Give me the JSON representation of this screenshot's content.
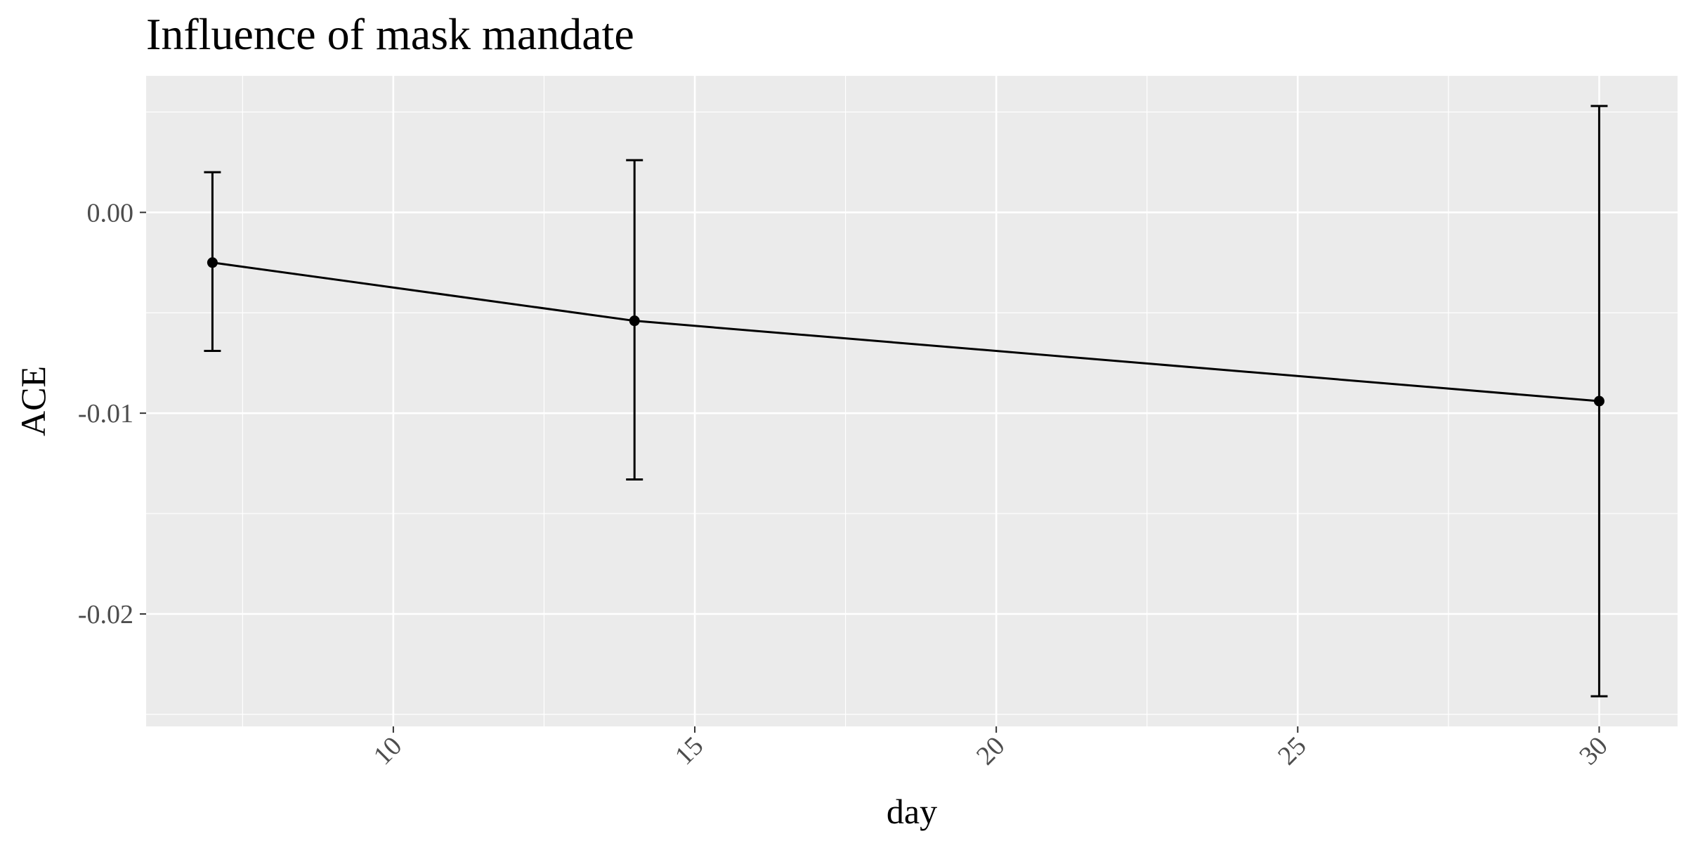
{
  "chart_data": {
    "type": "line",
    "title": "Influence of mask mandate",
    "xlabel": "day",
    "ylabel": "ACE",
    "xlim": [
      5.9,
      31.3
    ],
    "ylim": [
      -0.0256,
      0.0068
    ],
    "x_ticks": [
      10,
      15,
      20,
      25,
      30
    ],
    "x_tick_labels": [
      "10",
      "15",
      "20",
      "25",
      "30"
    ],
    "y_ticks": [
      0.0,
      -0.01,
      -0.02
    ],
    "y_tick_labels": [
      "0.00",
      "-0.01",
      "-0.02"
    ],
    "grid": true,
    "legend": "none",
    "x_tick_rotation": "45",
    "series": [
      {
        "x": [
          7,
          14,
          30
        ],
        "y": [
          -0.0025,
          -0.0054,
          -0.0094
        ],
        "ymin": [
          -0.0069,
          -0.0133,
          -0.0241
        ],
        "ymax": [
          0.002,
          0.0026,
          0.0053
        ]
      }
    ],
    "colors": {
      "panel": "#ebebeb",
      "grid": "#ffffff",
      "line": "#000000",
      "tick_text": "#4d4d4d"
    }
  }
}
